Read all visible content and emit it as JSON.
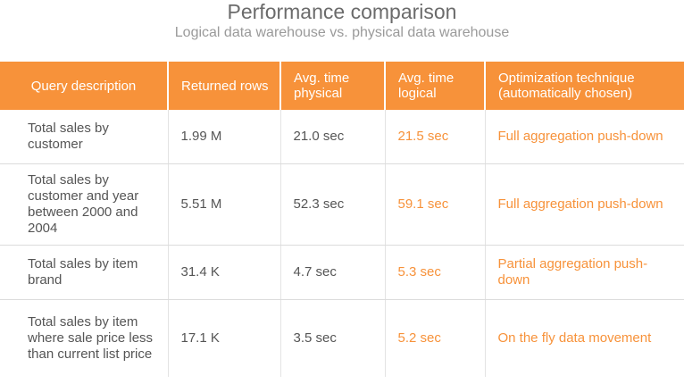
{
  "header": {
    "title": "Performance comparison",
    "subtitle": "Logical data warehouse vs. physical data warehouse"
  },
  "table": {
    "columns": [
      "Query description",
      "Returned rows",
      "Avg. time physical",
      "Avg. time logical",
      "Optimization technique (automatically chosen)"
    ],
    "rows": [
      {
        "query": "Total sales by customer",
        "rows": "1.99 M",
        "physical": "21.0 sec",
        "logical": "21.5 sec",
        "technique": "Full aggregation push-down"
      },
      {
        "query": "Total sales by customer and year between 2000 and 2004",
        "rows": "5.51 M",
        "physical": "52.3 sec",
        "logical": "59.1 sec",
        "technique": "Full aggregation push-down"
      },
      {
        "query": "Total sales by item brand",
        "rows": "31.4 K",
        "physical": "4.7 sec",
        "logical": "5.3 sec",
        "technique": "Partial aggregation push-down"
      },
      {
        "query": "Total sales by item where sale price less than current list price",
        "rows": "17.1 K",
        "physical": "3.5 sec",
        "logical": "5.2 sec",
        "technique": "On the fly data movement"
      }
    ]
  },
  "colors": {
    "accent": "#f7923a",
    "text": "#555555",
    "title": "#6b6b6b",
    "subtitle": "#9a9a9a"
  }
}
